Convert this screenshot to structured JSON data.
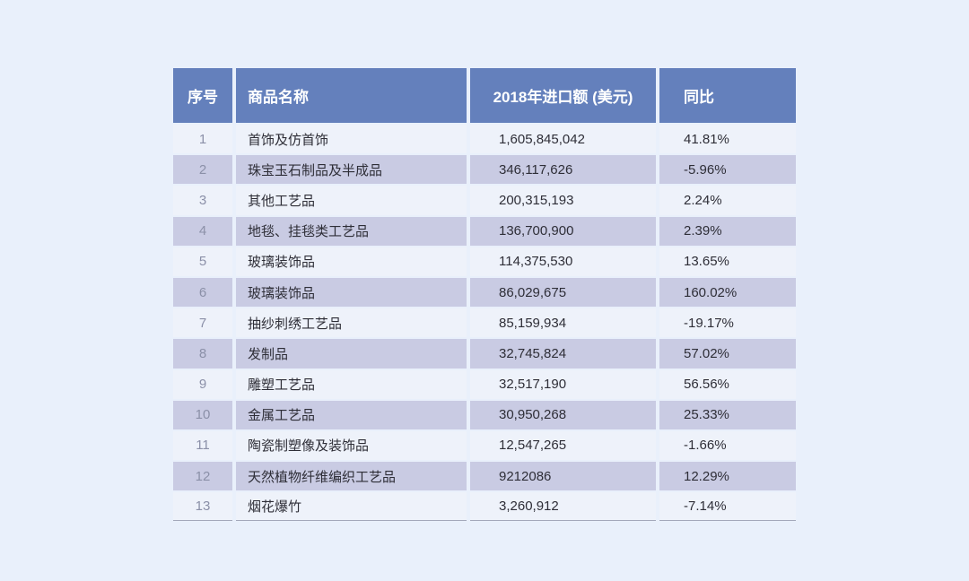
{
  "colors": {
    "page_bg": "#e9f0fb",
    "header_bg": "#6480bc",
    "header_text": "#ffffff",
    "row_light_bg": "#eef2fa",
    "row_dark_bg": "#c9cbe3",
    "index_text": "#8b90a8",
    "body_text": "#2e2e37",
    "bottom_border": "#a3a8ba"
  },
  "chart_data": {
    "type": "table",
    "title": "",
    "columns": [
      "序号",
      "商品名称",
      "2018年进口额 (美元)",
      "同比"
    ],
    "rows": [
      [
        "1",
        "首饰及仿首饰",
        "1,605,845,042",
        "41.81%"
      ],
      [
        "2",
        "珠宝玉石制品及半成品",
        "346,117,626",
        "-5.96%"
      ],
      [
        "3",
        "其他工艺品",
        "200,315,193",
        "2.24%"
      ],
      [
        "4",
        "地毯、挂毯类工艺品",
        "136,700,900",
        "2.39%"
      ],
      [
        "5",
        "玻璃装饰品",
        "114,375,530",
        "13.65%"
      ],
      [
        "6",
        "玻璃装饰品",
        "86,029,675",
        "160.02%"
      ],
      [
        "7",
        "抽纱刺绣工艺品",
        "85,159,934",
        "-19.17%"
      ],
      [
        "8",
        "发制品",
        "32,745,824",
        "57.02%"
      ],
      [
        "9",
        "雕塑工艺品",
        "32,517,190",
        "56.56%"
      ],
      [
        "10",
        "金属工艺品",
        "30,950,268",
        "25.33%"
      ],
      [
        "11",
        "陶瓷制塑像及装饰品",
        "12,547,265",
        "-1.66%"
      ],
      [
        "12",
        "天然植物纤维编织工艺品",
        "9212086",
        "12.29%"
      ],
      [
        "13",
        "烟花爆竹",
        "3,260,912",
        "-7.14%"
      ]
    ],
    "layout": {
      "striped": true,
      "first_row_shade": "light",
      "legend_position": "none",
      "grid": false
    }
  }
}
